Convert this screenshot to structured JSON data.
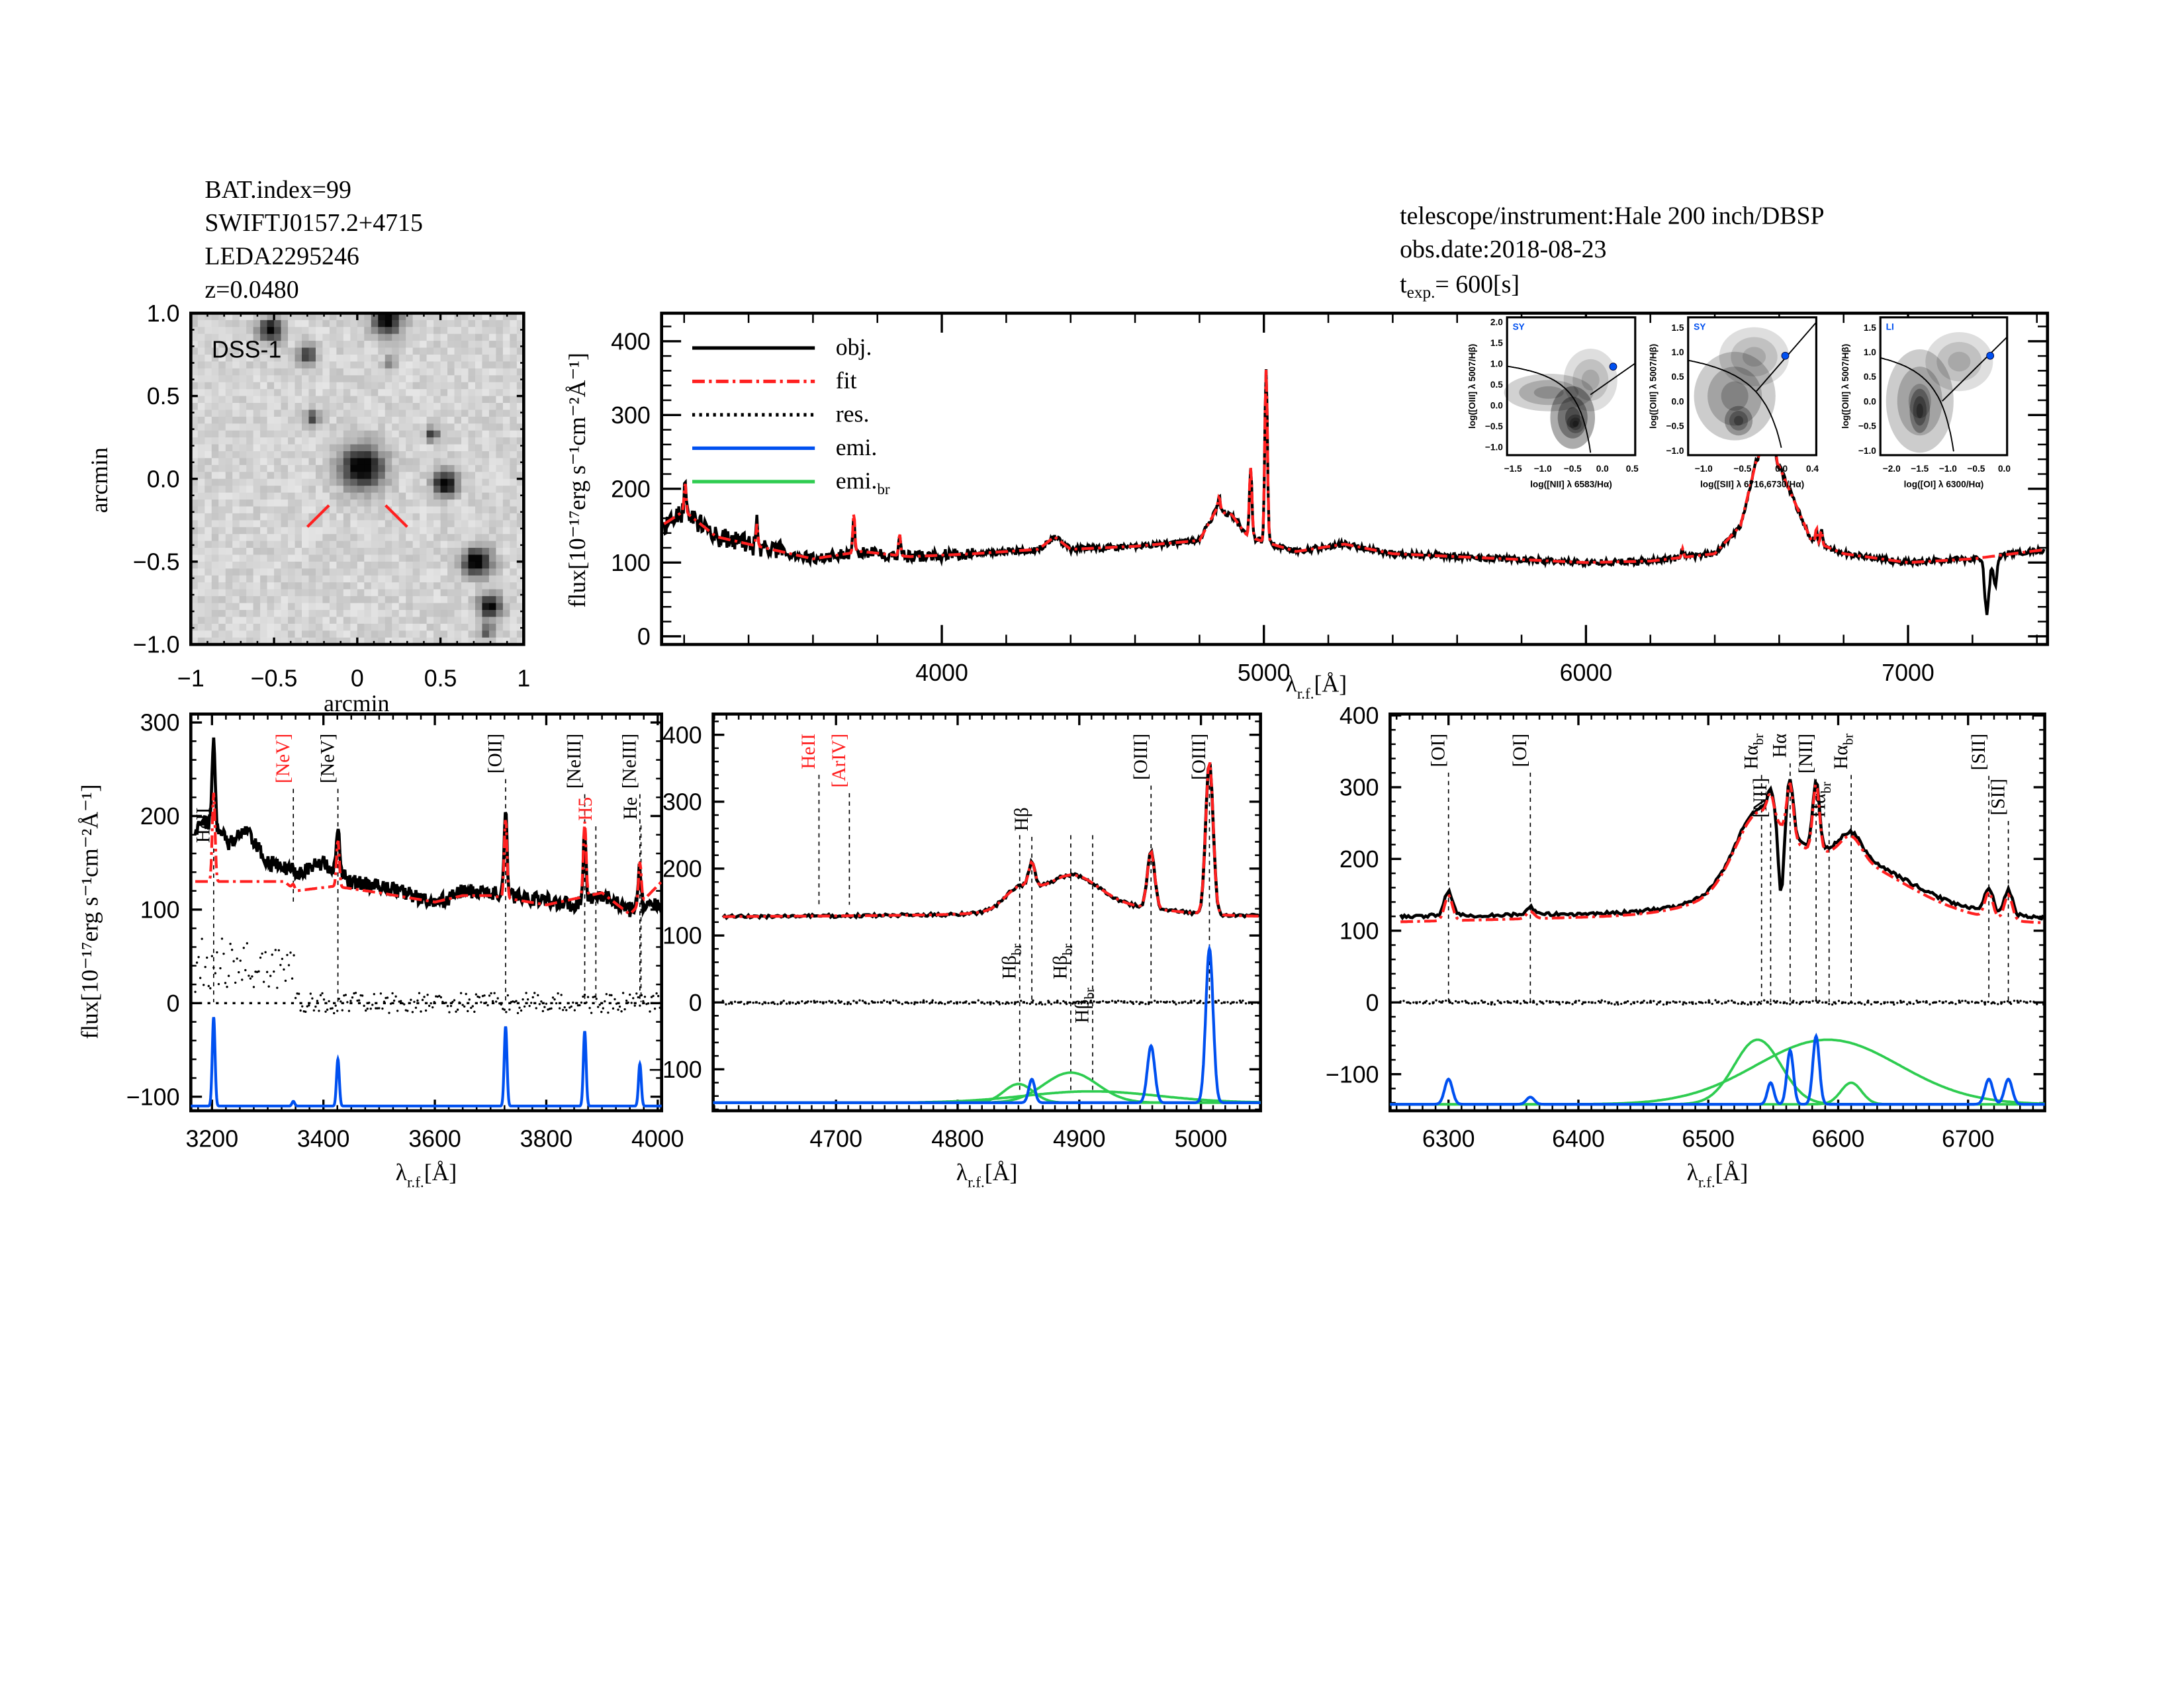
{
  "header": {
    "bat_index": "BAT.index=99",
    "swift_name": "SWIFTJ0157.2+4715",
    "leda_name": "LEDA2295246",
    "redshift": "z=0.0480",
    "telescope": "telescope/instrument:Hale 200 inch/DBSP",
    "obs_date": "obs.date:2018-08-23",
    "texp_main": "t",
    "texp_sub": "exp.",
    "texp_value": "=  600[s]"
  },
  "colors": {
    "obj": "#000000",
    "fit": "#ff2020",
    "res": "#000000",
    "emi": "#0050f0",
    "emi_br": "#2ecc50",
    "marker_red": "#ff2020"
  },
  "chart_data": [
    {
      "type": "image",
      "title": "DSS-1",
      "xlabel": "arcmin",
      "ylabel": "arcmin",
      "xlim": [
        -1.0,
        1.0
      ],
      "ylim": [
        -1.0,
        1.0
      ],
      "xticks": [
        -1.0,
        -0.5,
        0.0,
        0.5,
        1.0
      ],
      "yticks": [
        -1.0,
        -0.5,
        0.0,
        0.5,
        1.0
      ]
    },
    {
      "type": "line",
      "ylabel": "flux[10⁻¹⁷erg s⁻¹cm⁻²Å⁻¹]",
      "xlabel": {
        "main": "λ",
        "sub": "r.f.",
        "unit": "[Å]"
      },
      "xlim": [
        3130,
        7433
      ],
      "ylim": [
        -11,
        438
      ],
      "xticks": [
        4000,
        5000,
        6000,
        7000
      ],
      "yticks": [
        0,
        100,
        200,
        300,
        400
      ],
      "legend": {
        "placement": "top-left",
        "entries": [
          {
            "label": "obj.",
            "sub": "",
            "style": "obj"
          },
          {
            "label": "fit",
            "sub": "",
            "style": "fit"
          },
          {
            "label": "res.",
            "sub": "",
            "style": "res"
          },
          {
            "label": "emi.",
            "sub": "",
            "style": "emi"
          },
          {
            "label": "emi.",
            "sub": "br",
            "style": "emi_br"
          }
        ]
      },
      "continuum": [
        [
          3130,
          150
        ],
        [
          3200,
          170
        ],
        [
          3300,
          135
        ],
        [
          3500,
          115
        ],
        [
          3600,
          105
        ],
        [
          3750,
          115
        ],
        [
          3900,
          108
        ],
        [
          4100,
          112
        ],
        [
          4300,
          118
        ],
        [
          4350,
          135
        ],
        [
          4400,
          118
        ],
        [
          4600,
          122
        ],
        [
          4800,
          130
        ],
        [
          4850,
          170
        ],
        [
          4900,
          165
        ],
        [
          4950,
          135
        ],
        [
          5100,
          115
        ],
        [
          5250,
          125
        ],
        [
          5400,
          112
        ],
        [
          5600,
          108
        ],
        [
          6000,
          100
        ],
        [
          6200,
          102
        ],
        [
          6400,
          112
        ],
        [
          6480,
          150
        ],
        [
          6530,
          240
        ],
        [
          6560,
          255
        ],
        [
          6600,
          230
        ],
        [
          6650,
          180
        ],
        [
          6700,
          130
        ],
        [
          6800,
          112
        ],
        [
          7000,
          100
        ],
        [
          7200,
          105
        ],
        [
          7433,
          118
        ]
      ],
      "lines": [
        [
          3203,
          40,
          3
        ],
        [
          3426,
          30,
          3
        ],
        [
          3727,
          55,
          3
        ],
        [
          3869,
          30,
          3
        ],
        [
          4861,
          20,
          4
        ],
        [
          4959,
          95,
          4
        ],
        [
          5007,
          235,
          4
        ],
        [
          6300,
          12,
          3
        ],
        [
          6548,
          40,
          4
        ],
        [
          6563,
          60,
          4
        ],
        [
          6583,
          70,
          4
        ],
        [
          6716,
          20,
          3
        ],
        [
          6731,
          20,
          3
        ]
      ],
      "obj_absorption": [
        [
          7245,
          -75,
          7
        ],
        [
          7270,
          -40,
          6
        ]
      ]
    },
    {
      "type": "scatter-density",
      "label": "SY",
      "xlabel": "log([NII] λ 6583/Hα)",
      "ylabel": "log([OIII] λ 5007/Hβ)",
      "xlim": [
        -1.6,
        0.55
      ],
      "ylim": [
        -1.2,
        2.1
      ],
      "xticks": [
        -1.5,
        -1.0,
        -0.5,
        0.0,
        0.5
      ],
      "yticks": [
        -1.0,
        -0.5,
        0.0,
        0.5,
        1.0,
        1.5,
        2.0
      ],
      "point": [
        0.18,
        0.92
      ]
    },
    {
      "type": "scatter-density",
      "label": "SY",
      "xlabel": "log([SII] λ 6716,6730/Hα)",
      "ylabel": "log([OIII] λ 5007/Hβ)",
      "xlim": [
        -1.2,
        0.45
      ],
      "ylim": [
        -1.1,
        1.7
      ],
      "xticks": [
        -1.0,
        -0.5,
        0.0,
        0.4
      ],
      "yticks": [
        -1.0,
        -0.5,
        0.0,
        0.5,
        1.0,
        1.5
      ],
      "point": [
        0.05,
        0.92
      ]
    },
    {
      "type": "scatter-density",
      "label": "LI",
      "xlabel": "log([OI] λ 6300/Hα)",
      "ylabel": "log([OIII] λ 5007/Hβ)",
      "xlim": [
        -2.2,
        0.05
      ],
      "ylim": [
        -1.1,
        1.7
      ],
      "xticks": [
        -2.0,
        -1.5,
        -1.0,
        -0.5,
        0.0
      ],
      "yticks": [
        -1.0,
        -0.5,
        0.0,
        0.5,
        1.0,
        1.5
      ],
      "point": [
        -0.25,
        0.92
      ]
    },
    {
      "type": "line",
      "ylabel": "flux[10⁻¹⁷erg s⁻¹cm⁻²Å⁻¹]",
      "xlabel": {
        "main": "λ",
        "sub": "r.f.",
        "unit": "[Å]"
      },
      "xlim": [
        3162,
        4007
      ],
      "ylim": [
        -115,
        309
      ],
      "xticks": [
        3200,
        3400,
        3600,
        3800,
        4000
      ],
      "yticks": [
        -100,
        0,
        100,
        200,
        300
      ],
      "obj_continuum": [
        [
          3162,
          185
        ],
        [
          3200,
          195
        ],
        [
          3230,
          170
        ],
        [
          3260,
          185
        ],
        [
          3300,
          150
        ],
        [
          3350,
          140
        ],
        [
          3400,
          150
        ],
        [
          3450,
          130
        ],
        [
          3500,
          125
        ],
        [
          3550,
          118
        ],
        [
          3600,
          105
        ],
        [
          3650,
          120
        ],
        [
          3700,
          118
        ],
        [
          3800,
          110
        ],
        [
          3850,
          105
        ],
        [
          3900,
          115
        ],
        [
          3950,
          100
        ],
        [
          4007,
          105
        ]
      ],
      "fit_continuum": [
        [
          3162,
          130
        ],
        [
          3330,
          130
        ],
        [
          3350,
          120
        ],
        [
          3420,
          125
        ],
        [
          3500,
          118
        ],
        [
          3600,
          108
        ],
        [
          3650,
          115
        ],
        [
          3700,
          115
        ],
        [
          3800,
          105
        ],
        [
          3900,
          118
        ],
        [
          3950,
          95
        ],
        [
          4007,
          130
        ]
      ],
      "emi_baseline": -110,
      "narrow": [
        [
          3203,
          95,
          2.5
        ],
        [
          3346,
          5,
          2.5
        ],
        [
          3426,
          50,
          2.5
        ],
        [
          3727,
          85,
          2.5
        ],
        [
          3869,
          80,
          2.5
        ],
        [
          3968,
          45,
          2.5
        ]
      ],
      "broad": [],
      "obj_absorption": [],
      "markers": [
        {
          "label": "HeII",
          "sub": "",
          "wave": 3203,
          "color": "black",
          "tier": 1
        },
        {
          "label": "[NeV]",
          "sub": "",
          "wave": 3346,
          "color": "red",
          "tier": 0
        },
        {
          "label": "[NeV]",
          "sub": "",
          "wave": 3426,
          "color": "black",
          "tier": 0
        },
        {
          "label": "[OII]",
          "sub": "",
          "wave": 3727,
          "color": "black",
          "tier": 0
        },
        {
          "label": "[NeIII]",
          "sub": "",
          "wave": 3869,
          "color": "black",
          "tier": 0
        },
        {
          "label": "H5",
          "sub": "",
          "wave": 3889,
          "color": "red",
          "tier": 2
        },
        {
          "label": "[NeIII]",
          "sub": "",
          "wave": 3968,
          "color": "black",
          "tier": 0
        },
        {
          "label": "He",
          "sub": "",
          "wave": 3970,
          "color": "black",
          "tier": 2
        }
      ]
    },
    {
      "type": "line",
      "xlabel": {
        "main": "λ",
        "sub": "r.f.",
        "unit": "[Å]"
      },
      "xlim": [
        4599,
        5049
      ],
      "ylim": [
        -162,
        431
      ],
      "xticks": [
        4700,
        4800,
        4900,
        5000
      ],
      "yticks": [
        -100,
        0,
        100,
        200,
        300,
        400
      ],
      "obj_continuum": [
        [
          4599,
          128
        ],
        [
          4760,
          130
        ],
        [
          5049,
          128
        ]
      ],
      "fit_continuum": [
        [
          4599,
          128
        ],
        [
          4760,
          130
        ],
        [
          5049,
          128
        ]
      ],
      "emi_baseline": -150,
      "narrow": [
        [
          4861,
          35,
          2.5
        ],
        [
          4959,
          85,
          3
        ],
        [
          5007,
          230,
          3
        ]
      ],
      "broad": [
        [
          4850,
          28,
          12
        ],
        [
          4893,
          45,
          22
        ],
        [
          4910,
          17,
          55
        ]
      ],
      "obj_absorption": [],
      "markers": [
        {
          "label": "HeII",
          "sub": "",
          "wave": 4686,
          "color": "red",
          "tier": 0
        },
        {
          "label": "[ArIV]",
          "sub": "",
          "wave": 4711,
          "color": "red",
          "tier": 0
        },
        {
          "label": "Hβ",
          "sub": "",
          "wave": 4861,
          "color": "black",
          "tier": 1
        },
        {
          "label": "Hβ",
          "sub": "br",
          "wave": 4851,
          "color": "black",
          "tier": 3
        },
        {
          "label": "Hβ",
          "sub": "br",
          "wave": 4893,
          "color": "black",
          "tier": 3
        },
        {
          "label": "Hβ",
          "sub": "br",
          "wave": 4911,
          "color": "black",
          "tier": 3
        },
        {
          "label": "[OIII]",
          "sub": "",
          "wave": 4959,
          "color": "black",
          "tier": 0
        },
        {
          "label": "[OIII]",
          "sub": "",
          "wave": 5007,
          "color": "black",
          "tier": 0
        }
      ]
    },
    {
      "type": "line",
      "xlabel": {
        "main": "λ",
        "sub": "r.f.",
        "unit": "[Å]"
      },
      "xlim": [
        6255,
        6759
      ],
      "ylim": [
        -151,
        402
      ],
      "xticks": [
        6300,
        6400,
        6500,
        6600,
        6700
      ],
      "yticks": [
        -100,
        0,
        100,
        200,
        300,
        400
      ],
      "obj_continuum": [
        [
          6255,
          120
        ],
        [
          6480,
          125
        ],
        [
          6759,
          118
        ]
      ],
      "fit_continuum": [
        [
          6255,
          112
        ],
        [
          6480,
          122
        ],
        [
          6759,
          110
        ]
      ],
      "emi_baseline": -142,
      "narrow": [
        [
          6300,
          35,
          3
        ],
        [
          6363,
          10,
          3
        ],
        [
          6548,
          30,
          2.5
        ],
        [
          6563,
          75,
          2.5
        ],
        [
          6583,
          95,
          2.5
        ],
        [
          6716,
          35,
          3
        ],
        [
          6731,
          35,
          3
        ]
      ],
      "broad": [
        [
          6538,
          90,
          18
        ],
        [
          6592,
          90,
          55
        ],
        [
          6610,
          30,
          8
        ]
      ],
      "obj_absorption": [
        [
          6556,
          -100,
          2
        ]
      ],
      "markers": [
        {
          "label": "[OI]",
          "sub": "",
          "wave": 6300,
          "color": "black",
          "tier": 0
        },
        {
          "label": "[OI]",
          "sub": "",
          "wave": 6363,
          "color": "black",
          "tier": 0
        },
        {
          "label": "Hα",
          "sub": "br",
          "wave": 6541,
          "color": "black",
          "tier": 4
        },
        {
          "label": "[NII]",
          "sub": "",
          "wave": 6548,
          "color": "black",
          "tier": 4
        },
        {
          "label": "Hα",
          "sub": "",
          "wave": 6563,
          "color": "black",
          "tier": 4
        },
        {
          "label": "[NII]",
          "sub": "",
          "wave": 6583,
          "color": "black",
          "tier": 4
        },
        {
          "label": "Hα",
          "sub": "br",
          "wave": 6593,
          "color": "black",
          "tier": 4
        },
        {
          "label": "Hα",
          "sub": "br",
          "wave": 6610,
          "color": "black",
          "tier": 4
        },
        {
          "label": "[SII]",
          "sub": "",
          "wave": 6716,
          "color": "black",
          "tier": 0
        },
        {
          "label": "[SII]",
          "sub": "",
          "wave": 6731,
          "color": "black",
          "tier": 0
        }
      ]
    }
  ]
}
